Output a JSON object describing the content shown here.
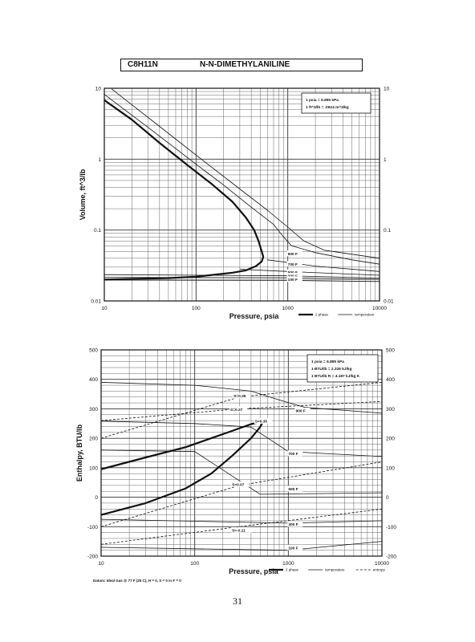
{
  "header": {
    "formula": "C8H11N",
    "name": "N-N-DIMETHYLANILINE"
  },
  "page_number": "31",
  "chart_data": [
    {
      "type": "line",
      "xlabel": "Pressure, psia",
      "ylabel": "Volume, ft^3/lb",
      "xscale": "log",
      "yscale": "log",
      "xlim": [
        10,
        10000
      ],
      "ylim": [
        0.01,
        10
      ],
      "xticks": [
        "10",
        "100",
        "1000",
        "10000"
      ],
      "yticks": [
        "0.01",
        "0.1",
        "1",
        "10"
      ],
      "legend_position": "bottom-right",
      "legend": [
        {
          "style": "thick",
          "label": "2 phase"
        },
        {
          "style": "thin",
          "label": "temperature"
        }
      ],
      "info_box": [
        "1 psia = 6.895 kPa",
        "1 ft^3/lb = .0624 m^3/kg"
      ],
      "series": [
        {
          "name": "2 phase",
          "style": "thick",
          "points": [
            [
              10,
              6.8
            ],
            [
              20,
              3.6
            ],
            [
              40,
              1.7
            ],
            [
              80,
              0.83
            ],
            [
              150,
              0.44
            ],
            [
              250,
              0.25
            ],
            [
              350,
              0.15
            ],
            [
              430,
              0.1
            ],
            [
              480,
              0.07
            ],
            [
              520,
              0.05
            ],
            [
              540,
              0.042
            ],
            [
              520,
              0.036
            ],
            [
              450,
              0.031
            ],
            [
              350,
              0.027
            ],
            [
              250,
              0.025
            ],
            [
              100,
              0.022
            ],
            [
              50,
              0.021
            ],
            [
              10,
              0.02
            ]
          ]
        },
        {
          "name": "temperature",
          "style": "thin",
          "points": [
            [
              10,
              8.2
            ],
            [
              30,
              2.8
            ],
            [
              100,
              0.85
            ],
            [
              200,
              0.43
            ],
            [
              400,
              0.21
            ],
            [
              700,
              0.12
            ],
            [
              900,
              0.08
            ],
            [
              1100,
              0.06
            ],
            [
              2000,
              0.048
            ],
            [
              5000,
              0.038
            ],
            [
              10000,
              0.033
            ]
          ]
        },
        {
          "name": "temperature",
          "style": "thin",
          "points": [
            [
              12,
              9.8
            ],
            [
              40,
              2.9
            ],
            [
              120,
              0.95
            ],
            [
              300,
              0.38
            ],
            [
              600,
              0.19
            ],
            [
              1000,
              0.11
            ],
            [
              1500,
              0.07
            ],
            [
              2500,
              0.052
            ],
            [
              10000,
              0.04
            ]
          ]
        },
        {
          "name": "900 F",
          "style": "thin",
          "points": [
            [
              600,
              0.038
            ],
            [
              2000,
              0.031
            ],
            [
              10000,
              0.026
            ]
          ]
        },
        {
          "name": "700 F",
          "style": "thin",
          "points": [
            [
              300,
              0.028
            ],
            [
              1000,
              0.026
            ],
            [
              10000,
              0.023
            ]
          ]
        },
        {
          "name": "500 F",
          "style": "thin",
          "points": [
            [
              10,
              0.0235
            ],
            [
              1000,
              0.0226
            ],
            [
              10000,
              0.021
            ]
          ]
        },
        {
          "name": "300 F",
          "style": "thin",
          "points": [
            [
              10,
              0.0215
            ],
            [
              1000,
              0.0212
            ],
            [
              10000,
              0.0202
            ]
          ]
        },
        {
          "name": "100 F",
          "style": "thin",
          "points": [
            [
              10,
              0.0197
            ],
            [
              1000,
              0.0195
            ],
            [
              10000,
              0.0188
            ]
          ]
        }
      ],
      "annotations": [
        {
          "text": "900 F",
          "x": 1000,
          "y": 0.045
        },
        {
          "text": "700 F",
          "x": 1000,
          "y": 0.032
        },
        {
          "text": "500 F",
          "x": 1000,
          "y": 0.0245
        },
        {
          "text": "300 F",
          "x": 1000,
          "y": 0.0218
        },
        {
          "text": "100 F",
          "x": 1000,
          "y": 0.0195
        }
      ]
    },
    {
      "type": "line",
      "xlabel": "Pressure, psia",
      "ylabel": "Enthalpy, BTU/lb",
      "xscale": "log",
      "yscale": "linear",
      "xlim": [
        10,
        10000
      ],
      "ylim": [
        -200,
        500
      ],
      "xticks": [
        "10",
        "100",
        "1000",
        "10000"
      ],
      "yticks": [
        "-200",
        "-100",
        "0",
        "100",
        "200",
        "300",
        "400",
        "500"
      ],
      "legend_position": "bottom-right",
      "legend": [
        {
          "style": "thick",
          "label": "2 phase"
        },
        {
          "style": "thin",
          "label": "temperature"
        },
        {
          "style": "dashed",
          "label": "entropy"
        }
      ],
      "info_box": [
        "1 psia = 6.895 kPa",
        "1 BTU/lb = 2.326 kJ/kg",
        "1 BTU/lb R = 4.187 kJ/kg K"
      ],
      "footnote": "Datum: Ideal Gas @ 77 F (25 C), H = 0, S = 0 in F = 0",
      "series": [
        {
          "name": "2 phase vapor",
          "style": "thick",
          "points": [
            [
              10,
              95
            ],
            [
              30,
              135
            ],
            [
              80,
              170
            ],
            [
              150,
              200
            ],
            [
              250,
              225
            ],
            [
              400,
              248
            ],
            [
              540,
              258
            ]
          ]
        },
        {
          "name": "2 phase liquid",
          "style": "thick",
          "points": [
            [
              10,
              -60
            ],
            [
              30,
              -20
            ],
            [
              80,
              30
            ],
            [
              150,
              80
            ],
            [
              250,
              140
            ],
            [
              400,
              200
            ],
            [
              500,
              238
            ],
            [
              540,
              258
            ]
          ]
        },
        {
          "name": "900 F",
          "style": "thin",
          "points": [
            [
              10,
              390
            ],
            [
              100,
              380
            ],
            [
              400,
              360
            ],
            [
              800,
              330
            ],
            [
              1500,
              305
            ],
            [
              10000,
              285
            ]
          ]
        },
        {
          "name": "700 F",
          "style": "thin",
          "points": [
            [
              10,
              258
            ],
            [
              100,
              250
            ],
            [
              400,
              238
            ],
            [
              1000,
              155
            ],
            [
              10000,
              138
            ]
          ]
        },
        {
          "name": "500 F",
          "style": "thin",
          "points": [
            [
              10,
              160
            ],
            [
              100,
              155
            ],
            [
              500,
              10
            ],
            [
              10000,
              15
            ]
          ]
        },
        {
          "name": "300 F",
          "style": "thin",
          "points": [
            [
              10,
              -75
            ],
            [
              1000,
              -88
            ],
            [
              10000,
              -80
            ]
          ]
        },
        {
          "name": "100 F",
          "style": "thin",
          "points": [
            [
              10,
              -170
            ],
            [
              1000,
              -180
            ],
            [
              10000,
              -150
            ]
          ]
        },
        {
          "name": "S=0.35",
          "style": "dashed",
          "points": [
            [
              10,
              200
            ],
            [
              300,
              340
            ],
            [
              10000,
              390
            ]
          ]
        },
        {
          "name": "S=0.27",
          "style": "dashed",
          "points": [
            [
              10,
              260
            ],
            [
              300,
              300
            ],
            [
              10000,
              325
            ]
          ]
        },
        {
          "name": "S=0.07",
          "style": "dashed",
          "points": [
            [
              10,
              -100
            ],
            [
              300,
              40
            ],
            [
              10000,
              120
            ]
          ]
        },
        {
          "name": "S=-0.11",
          "style": "dashed",
          "points": [
            [
              10,
              -160
            ],
            [
              300,
              -100
            ],
            [
              10000,
              -40
            ]
          ]
        }
      ],
      "annotations": [
        {
          "text": "S=0.35",
          "x": 260,
          "y": 340
        },
        {
          "text": "S=0.27",
          "x": 240,
          "y": 295
        },
        {
          "text": "S=0.35",
          "x": 440,
          "y": 255
        },
        {
          "text": "900 F",
          "x": 1200,
          "y": 290
        },
        {
          "text": "700 F",
          "x": 1000,
          "y": 145
        },
        {
          "text": "S=0.07",
          "x": 250,
          "y": 40
        },
        {
          "text": "500 F",
          "x": 1000,
          "y": 25
        },
        {
          "text": "300 F",
          "x": 1000,
          "y": -95
        },
        {
          "text": "S=-0.11",
          "x": 250,
          "y": -115
        },
        {
          "text": "100 F",
          "x": 1000,
          "y": -175
        }
      ]
    }
  ]
}
